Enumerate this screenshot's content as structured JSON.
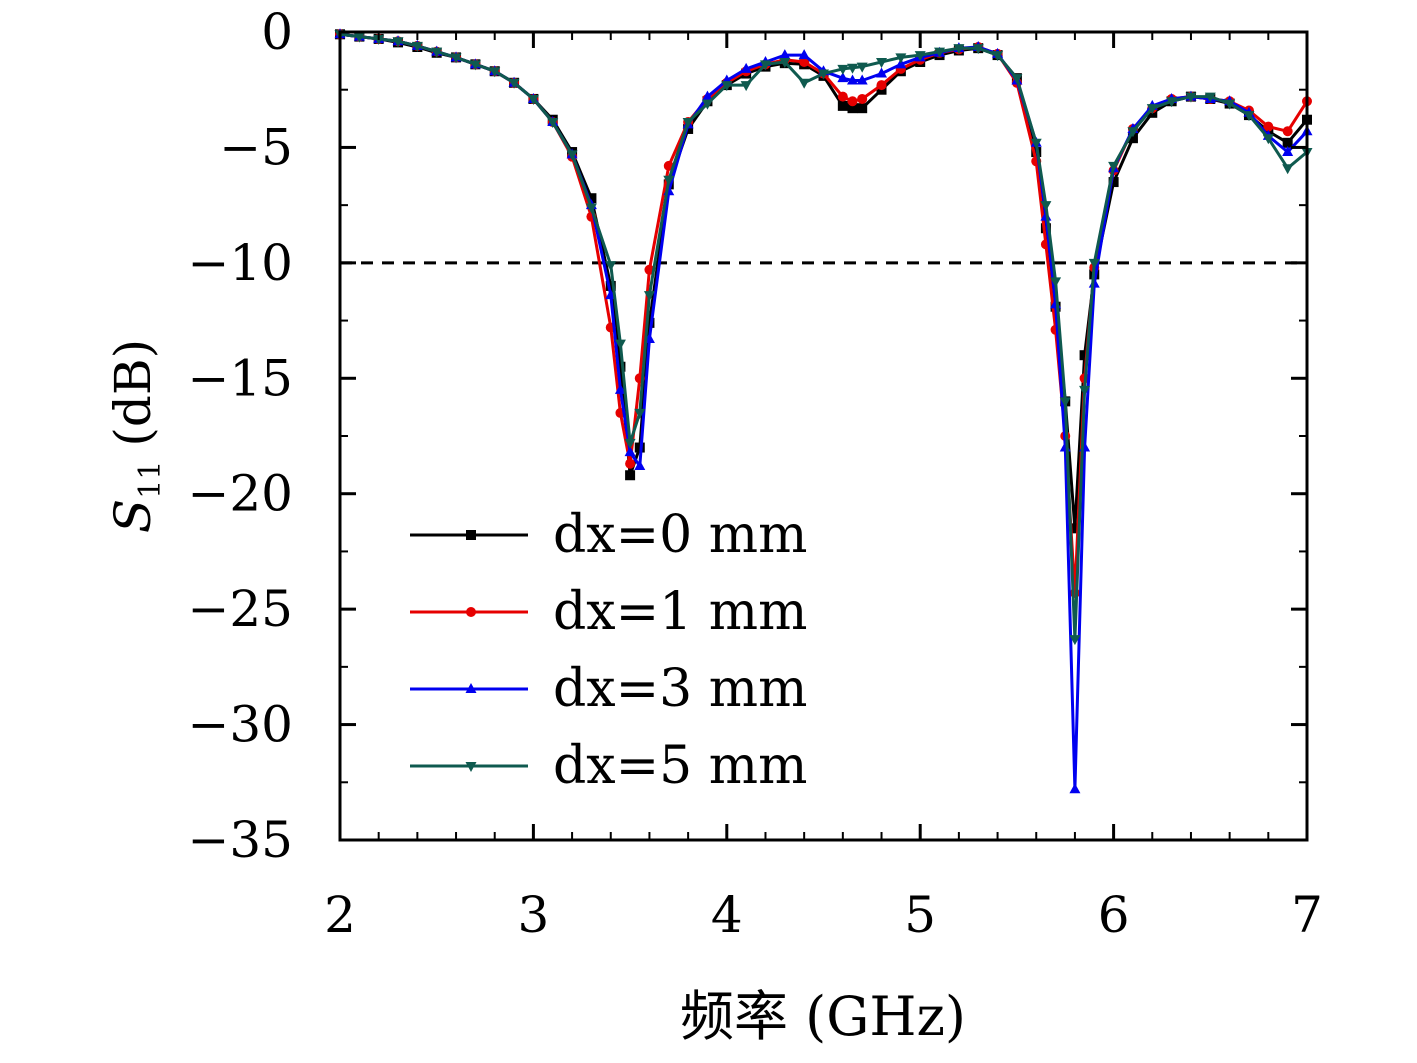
{
  "chart_data": {
    "type": "line",
    "xlabel": "频率 (GHz)",
    "ylabel_symbol": "S",
    "ylabel_sub": "11",
    "ylabel_unit": "(dB)",
    "xlim": [
      2,
      7
    ],
    "ylim": [
      -35,
      0
    ],
    "xticks": [
      2,
      3,
      4,
      5,
      6,
      7
    ],
    "yticks": [
      0,
      -5,
      -10,
      -15,
      -20,
      -25,
      -30,
      -35
    ],
    "ytick_labels": [
      "0",
      "−5",
      "−10",
      "−15",
      "−20",
      "−25",
      "−30",
      "−35"
    ],
    "reference_line": {
      "y": -10,
      "style": "dashed",
      "color": "#000000"
    },
    "legend_position": "lower-left",
    "series": [
      {
        "name": "dx=0 mm",
        "color": "#000000",
        "marker": "square",
        "x": [
          2.0,
          2.1,
          2.2,
          2.3,
          2.4,
          2.5,
          2.6,
          2.7,
          2.8,
          2.9,
          3.0,
          3.1,
          3.2,
          3.3,
          3.4,
          3.45,
          3.5,
          3.55,
          3.6,
          3.7,
          3.8,
          3.9,
          4.0,
          4.1,
          4.2,
          4.3,
          4.4,
          4.5,
          4.6,
          4.65,
          4.7,
          4.8,
          4.9,
          5.0,
          5.1,
          5.2,
          5.3,
          5.4,
          5.5,
          5.6,
          5.65,
          5.7,
          5.75,
          5.8,
          5.85,
          5.9,
          6.0,
          6.1,
          6.2,
          6.3,
          6.4,
          6.5,
          6.6,
          6.7,
          6.8,
          6.9,
          7.0
        ],
        "values": [
          -0.1,
          -0.2,
          -0.3,
          -0.45,
          -0.65,
          -0.9,
          -1.1,
          -1.4,
          -1.7,
          -2.2,
          -2.9,
          -3.8,
          -5.2,
          -7.2,
          -11.0,
          -14.5,
          -19.2,
          -18.0,
          -12.6,
          -6.6,
          -4.2,
          -3.0,
          -2.3,
          -1.8,
          -1.5,
          -1.35,
          -1.4,
          -1.9,
          -3.2,
          -3.3,
          -3.3,
          -2.5,
          -1.7,
          -1.3,
          -1.0,
          -0.8,
          -0.7,
          -1.0,
          -2.0,
          -5.2,
          -8.5,
          -11.9,
          -16.0,
          -21.5,
          -14.0,
          -10.5,
          -6.5,
          -4.6,
          -3.5,
          -3.0,
          -2.8,
          -2.9,
          -3.1,
          -3.6,
          -4.3,
          -4.8,
          -3.8
        ]
      },
      {
        "name": "dx=1 mm",
        "color": "#e60000",
        "marker": "circle",
        "x": [
          2.0,
          2.1,
          2.2,
          2.3,
          2.4,
          2.5,
          2.6,
          2.7,
          2.8,
          2.9,
          3.0,
          3.1,
          3.2,
          3.3,
          3.4,
          3.45,
          3.5,
          3.55,
          3.6,
          3.7,
          3.8,
          3.9,
          4.0,
          4.1,
          4.2,
          4.3,
          4.4,
          4.5,
          4.6,
          4.65,
          4.7,
          4.8,
          4.9,
          5.0,
          5.1,
          5.2,
          5.3,
          5.4,
          5.5,
          5.6,
          5.65,
          5.7,
          5.75,
          5.8,
          5.85,
          5.9,
          6.0,
          6.1,
          6.2,
          6.3,
          6.4,
          6.5,
          6.6,
          6.7,
          6.8,
          6.9,
          7.0
        ],
        "values": [
          -0.1,
          -0.2,
          -0.3,
          -0.4,
          -0.6,
          -0.85,
          -1.1,
          -1.4,
          -1.7,
          -2.2,
          -2.9,
          -3.9,
          -5.4,
          -8.0,
          -12.8,
          -16.5,
          -18.7,
          -15.0,
          -10.3,
          -5.8,
          -3.9,
          -2.9,
          -2.2,
          -1.7,
          -1.4,
          -1.2,
          -1.3,
          -1.8,
          -2.8,
          -3.0,
          -2.9,
          -2.3,
          -1.6,
          -1.2,
          -0.9,
          -0.75,
          -0.65,
          -0.95,
          -2.2,
          -5.6,
          -9.2,
          -12.9,
          -17.5,
          -24.3,
          -15.0,
          -10.2,
          -6.0,
          -4.2,
          -3.3,
          -2.9,
          -2.8,
          -2.9,
          -3.0,
          -3.4,
          -4.1,
          -4.3,
          -3.0
        ]
      },
      {
        "name": "dx=3 mm",
        "color": "#0000f0",
        "marker": "triangle-up",
        "x": [
          2.0,
          2.1,
          2.2,
          2.3,
          2.4,
          2.5,
          2.6,
          2.7,
          2.8,
          2.9,
          3.0,
          3.1,
          3.2,
          3.3,
          3.4,
          3.45,
          3.5,
          3.55,
          3.6,
          3.7,
          3.8,
          3.9,
          4.0,
          4.1,
          4.2,
          4.3,
          4.4,
          4.5,
          4.6,
          4.65,
          4.7,
          4.8,
          4.9,
          5.0,
          5.1,
          5.2,
          5.3,
          5.4,
          5.5,
          5.6,
          5.65,
          5.7,
          5.75,
          5.8,
          5.85,
          5.9,
          6.0,
          6.1,
          6.2,
          6.3,
          6.4,
          6.5,
          6.6,
          6.7,
          6.8,
          6.9,
          7.0
        ],
        "values": [
          -0.1,
          -0.2,
          -0.3,
          -0.4,
          -0.6,
          -0.85,
          -1.1,
          -1.4,
          -1.7,
          -2.2,
          -2.9,
          -3.9,
          -5.3,
          -7.5,
          -11.4,
          -15.5,
          -18.2,
          -18.8,
          -13.3,
          -6.9,
          -4.0,
          -2.8,
          -2.1,
          -1.6,
          -1.3,
          -1.0,
          -1.0,
          -1.7,
          -2.0,
          -2.1,
          -2.1,
          -1.8,
          -1.4,
          -1.1,
          -0.9,
          -0.7,
          -0.65,
          -0.95,
          -2.1,
          -4.8,
          -8.0,
          -11.8,
          -18.0,
          -32.8,
          -18.0,
          -10.9,
          -5.9,
          -4.2,
          -3.2,
          -2.9,
          -2.8,
          -2.9,
          -3.0,
          -3.5,
          -4.5,
          -5.2,
          -4.3
        ]
      },
      {
        "name": "dx=5 mm",
        "color": "#0f5a4f",
        "marker": "triangle-down",
        "x": [
          2.0,
          2.1,
          2.2,
          2.3,
          2.4,
          2.5,
          2.6,
          2.7,
          2.8,
          2.9,
          3.0,
          3.1,
          3.2,
          3.3,
          3.4,
          3.45,
          3.5,
          3.55,
          3.6,
          3.7,
          3.8,
          3.9,
          4.0,
          4.1,
          4.2,
          4.3,
          4.4,
          4.5,
          4.6,
          4.65,
          4.7,
          4.8,
          4.9,
          5.0,
          5.1,
          5.2,
          5.3,
          5.4,
          5.5,
          5.6,
          5.65,
          5.7,
          5.75,
          5.8,
          5.85,
          5.9,
          6.0,
          6.1,
          6.2,
          6.3,
          6.4,
          6.5,
          6.6,
          6.7,
          6.8,
          6.9,
          7.0
        ],
        "values": [
          -0.1,
          -0.2,
          -0.3,
          -0.4,
          -0.6,
          -0.85,
          -1.1,
          -1.4,
          -1.7,
          -2.2,
          -2.9,
          -3.9,
          -5.3,
          -7.6,
          -10.1,
          -13.5,
          -17.8,
          -16.5,
          -11.4,
          -6.4,
          -3.9,
          -3.1,
          -2.3,
          -2.3,
          -1.4,
          -1.3,
          -2.2,
          -1.8,
          -1.6,
          -1.55,
          -1.5,
          -1.3,
          -1.1,
          -1.0,
          -0.85,
          -0.7,
          -0.7,
          -1.0,
          -2.0,
          -4.8,
          -7.5,
          -10.8,
          -16.0,
          -26.3,
          -15.5,
          -10.0,
          -5.8,
          -4.3,
          -3.3,
          -3.0,
          -2.8,
          -2.8,
          -3.1,
          -3.6,
          -4.6,
          -5.9,
          -5.2
        ]
      }
    ]
  }
}
